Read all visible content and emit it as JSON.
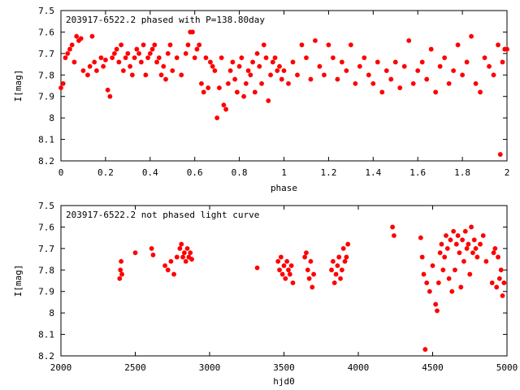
{
  "chart_data": [
    {
      "type": "scatter",
      "title": "203917-6522.2 phased with P=138.80day",
      "xlabel": "phase",
      "ylabel": "I[mag]",
      "xlim": [
        0,
        2
      ],
      "ylim": [
        7.5,
        8.2
      ],
      "y_inverted": true,
      "grid": false,
      "x_ticks": [
        "0",
        "0.2",
        "0.4",
        "0.6",
        "0.8",
        "1",
        "1.2",
        "1.4",
        "1.6",
        "1.8",
        "2"
      ],
      "y_ticks": [
        "7.5",
        "7.6",
        "7.7",
        "7.8",
        "7.9",
        "8",
        "8.1",
        "8.2"
      ],
      "marker_color": "#ff0000",
      "series": [
        {
          "x": [
            0.0,
            0.01,
            0.02,
            0.03,
            0.04,
            0.05,
            0.06,
            0.07,
            0.08,
            0.09,
            0.1,
            0.12,
            0.13,
            0.14,
            0.15,
            0.16,
            0.18,
            0.19,
            0.2,
            0.21,
            0.22,
            0.23,
            0.24,
            0.25,
            0.26,
            0.27,
            0.28,
            0.29,
            0.3,
            0.31,
            0.32,
            0.33,
            0.34,
            0.35,
            0.36,
            0.37,
            0.38,
            0.39,
            0.4,
            0.41,
            0.42,
            0.43,
            0.44,
            0.45,
            0.46,
            0.47,
            0.48,
            0.49,
            0.5,
            0.52,
            0.54,
            0.56,
            0.57,
            0.58,
            0.59,
            0.6,
            0.61,
            0.62,
            0.63,
            0.64,
            0.65,
            0.66,
            0.67,
            0.68,
            0.69,
            0.7,
            0.71,
            0.72,
            0.73,
            0.74,
            0.75,
            0.76,
            0.77,
            0.78,
            0.79,
            0.8,
            0.81,
            0.82,
            0.83,
            0.84,
            0.85,
            0.86,
            0.87,
            0.88,
            0.89,
            0.9,
            0.91,
            0.92,
            0.93,
            0.94,
            0.95,
            0.96,
            0.97,
            0.98,
            0.99,
            1.0,
            1.02,
            1.04,
            1.06,
            1.08,
            1.1,
            1.12,
            1.14,
            1.16,
            1.18,
            1.2,
            1.22,
            1.24,
            1.26,
            1.28,
            1.3,
            1.32,
            1.34,
            1.36,
            1.38,
            1.4,
            1.42,
            1.44,
            1.46,
            1.48,
            1.5,
            1.52,
            1.54,
            1.56,
            1.58,
            1.6,
            1.62,
            1.64,
            1.66,
            1.68,
            1.7,
            1.72,
            1.74,
            1.76,
            1.78,
            1.8,
            1.82,
            1.84,
            1.86,
            1.88,
            1.9,
            1.92,
            1.94,
            1.96,
            1.97,
            1.98,
            1.99,
            2.0
          ],
          "y": [
            7.86,
            7.84,
            7.72,
            7.7,
            7.68,
            7.66,
            7.74,
            7.62,
            7.64,
            7.63,
            7.78,
            7.8,
            7.76,
            7.62,
            7.74,
            7.78,
            7.72,
            7.76,
            7.73,
            7.87,
            7.9,
            7.72,
            7.7,
            7.68,
            7.74,
            7.66,
            7.78,
            7.72,
            7.7,
            7.76,
            7.8,
            7.72,
            7.68,
            7.7,
            7.74,
            7.66,
            7.8,
            7.72,
            7.7,
            7.68,
            7.66,
            7.74,
            7.72,
            7.8,
            7.76,
            7.82,
            7.7,
            7.66,
            7.78,
            7.72,
            7.8,
            7.7,
            7.66,
            7.6,
            7.6,
            7.72,
            7.68,
            7.66,
            7.84,
            7.88,
            7.72,
            7.86,
            7.74,
            7.76,
            7.78,
            8.0,
            7.86,
            7.72,
            7.94,
            7.96,
            7.84,
            7.78,
            7.74,
            7.82,
            7.88,
            7.76,
            7.72,
            7.9,
            7.84,
            7.78,
            7.8,
            7.74,
            7.88,
            7.7,
            7.76,
            7.84,
            7.66,
            7.72,
            7.92,
            7.8,
            7.74,
            7.72,
            7.78,
            7.76,
            7.82,
            7.78,
            7.84,
            7.74,
            7.8,
            7.66,
            7.72,
            7.82,
            7.64,
            7.76,
            7.8,
            7.66,
            7.72,
            7.82,
            7.74,
            7.78,
            7.66,
            7.84,
            7.76,
            7.72,
            7.8,
            7.84,
            7.74,
            7.88,
            7.78,
            7.82,
            7.74,
            7.86,
            7.76,
            7.64,
            7.84,
            7.78,
            7.74,
            7.82,
            7.68,
            7.88,
            7.76,
            7.72,
            7.84,
            7.78,
            7.66,
            7.8,
            7.74,
            7.62,
            7.84,
            7.88,
            7.72,
            7.76,
            7.8,
            7.66,
            8.17,
            7.74,
            7.68,
            7.68
          ]
        }
      ]
    },
    {
      "type": "scatter",
      "title": "203917-6522.2 not phased light curve",
      "xlabel": "hjd0",
      "ylabel": "I[mag]",
      "xlim": [
        2000,
        5000
      ],
      "ylim": [
        7.5,
        8.2
      ],
      "y_inverted": true,
      "grid": false,
      "x_ticks": [
        "2000",
        "2500",
        "3000",
        "3500",
        "4000",
        "4500",
        "5000"
      ],
      "y_ticks": [
        "7.5",
        "7.6",
        "7.7",
        "7.8",
        "7.9",
        "8",
        "8.1",
        "8.2"
      ],
      "marker_color": "#ff0000",
      "series": [
        {
          "x": [
            2395,
            2400,
            2405,
            2410,
            2500,
            2610,
            2620,
            2700,
            2720,
            2740,
            2760,
            2780,
            2800,
            2810,
            2820,
            2830,
            2840,
            2850,
            2860,
            2870,
            2880,
            3320,
            3460,
            3470,
            3480,
            3490,
            3500,
            3510,
            3520,
            3530,
            3540,
            3550,
            3560,
            3640,
            3650,
            3660,
            3670,
            3680,
            3690,
            3700,
            3820,
            3830,
            3840,
            3850,
            3860,
            3870,
            3880,
            3890,
            3900,
            3910,
            3920,
            3930,
            4230,
            4240,
            4420,
            4430,
            4440,
            4450,
            4460,
            4480,
            4500,
            4520,
            4530,
            4540,
            4550,
            4560,
            4570,
            4580,
            4590,
            4600,
            4610,
            4620,
            4630,
            4640,
            4650,
            4660,
            4670,
            4680,
            4690,
            4700,
            4710,
            4720,
            4730,
            4740,
            4750,
            4760,
            4770,
            4780,
            4790,
            4800,
            4820,
            4840,
            4860,
            4900,
            4910,
            4920,
            4930,
            4940,
            4950,
            4960,
            4970,
            4980
          ],
          "y": [
            7.84,
            7.8,
            7.76,
            7.82,
            7.72,
            7.7,
            7.73,
            7.78,
            7.8,
            7.76,
            7.82,
            7.74,
            7.7,
            7.68,
            7.74,
            7.72,
            7.76,
            7.7,
            7.74,
            7.72,
            7.75,
            7.79,
            7.76,
            7.8,
            7.74,
            7.82,
            7.78,
            7.84,
            7.76,
            7.8,
            7.82,
            7.78,
            7.86,
            7.74,
            7.72,
            7.8,
            7.84,
            7.76,
            7.88,
            7.82,
            7.8,
            7.76,
            7.86,
            7.82,
            7.78,
            7.74,
            7.84,
            7.8,
            7.7,
            7.76,
            7.74,
            7.68,
            7.6,
            7.64,
            7.65,
            7.74,
            7.82,
            8.17,
            7.86,
            7.9,
            7.78,
            7.96,
            7.99,
            7.86,
            7.72,
            7.68,
            7.8,
            7.74,
            7.64,
            7.7,
            7.84,
            7.66,
            7.9,
            7.62,
            7.8,
            7.68,
            7.64,
            7.72,
            7.88,
            7.66,
            7.76,
            7.62,
            7.7,
            7.68,
            7.82,
            7.6,
            7.72,
            7.66,
            7.7,
            7.74,
            7.68,
            7.64,
            7.76,
            7.86,
            7.72,
            7.7,
            7.88,
            7.74,
            7.84,
            7.8,
            7.92,
            7.86
          ]
        }
      ]
    }
  ]
}
